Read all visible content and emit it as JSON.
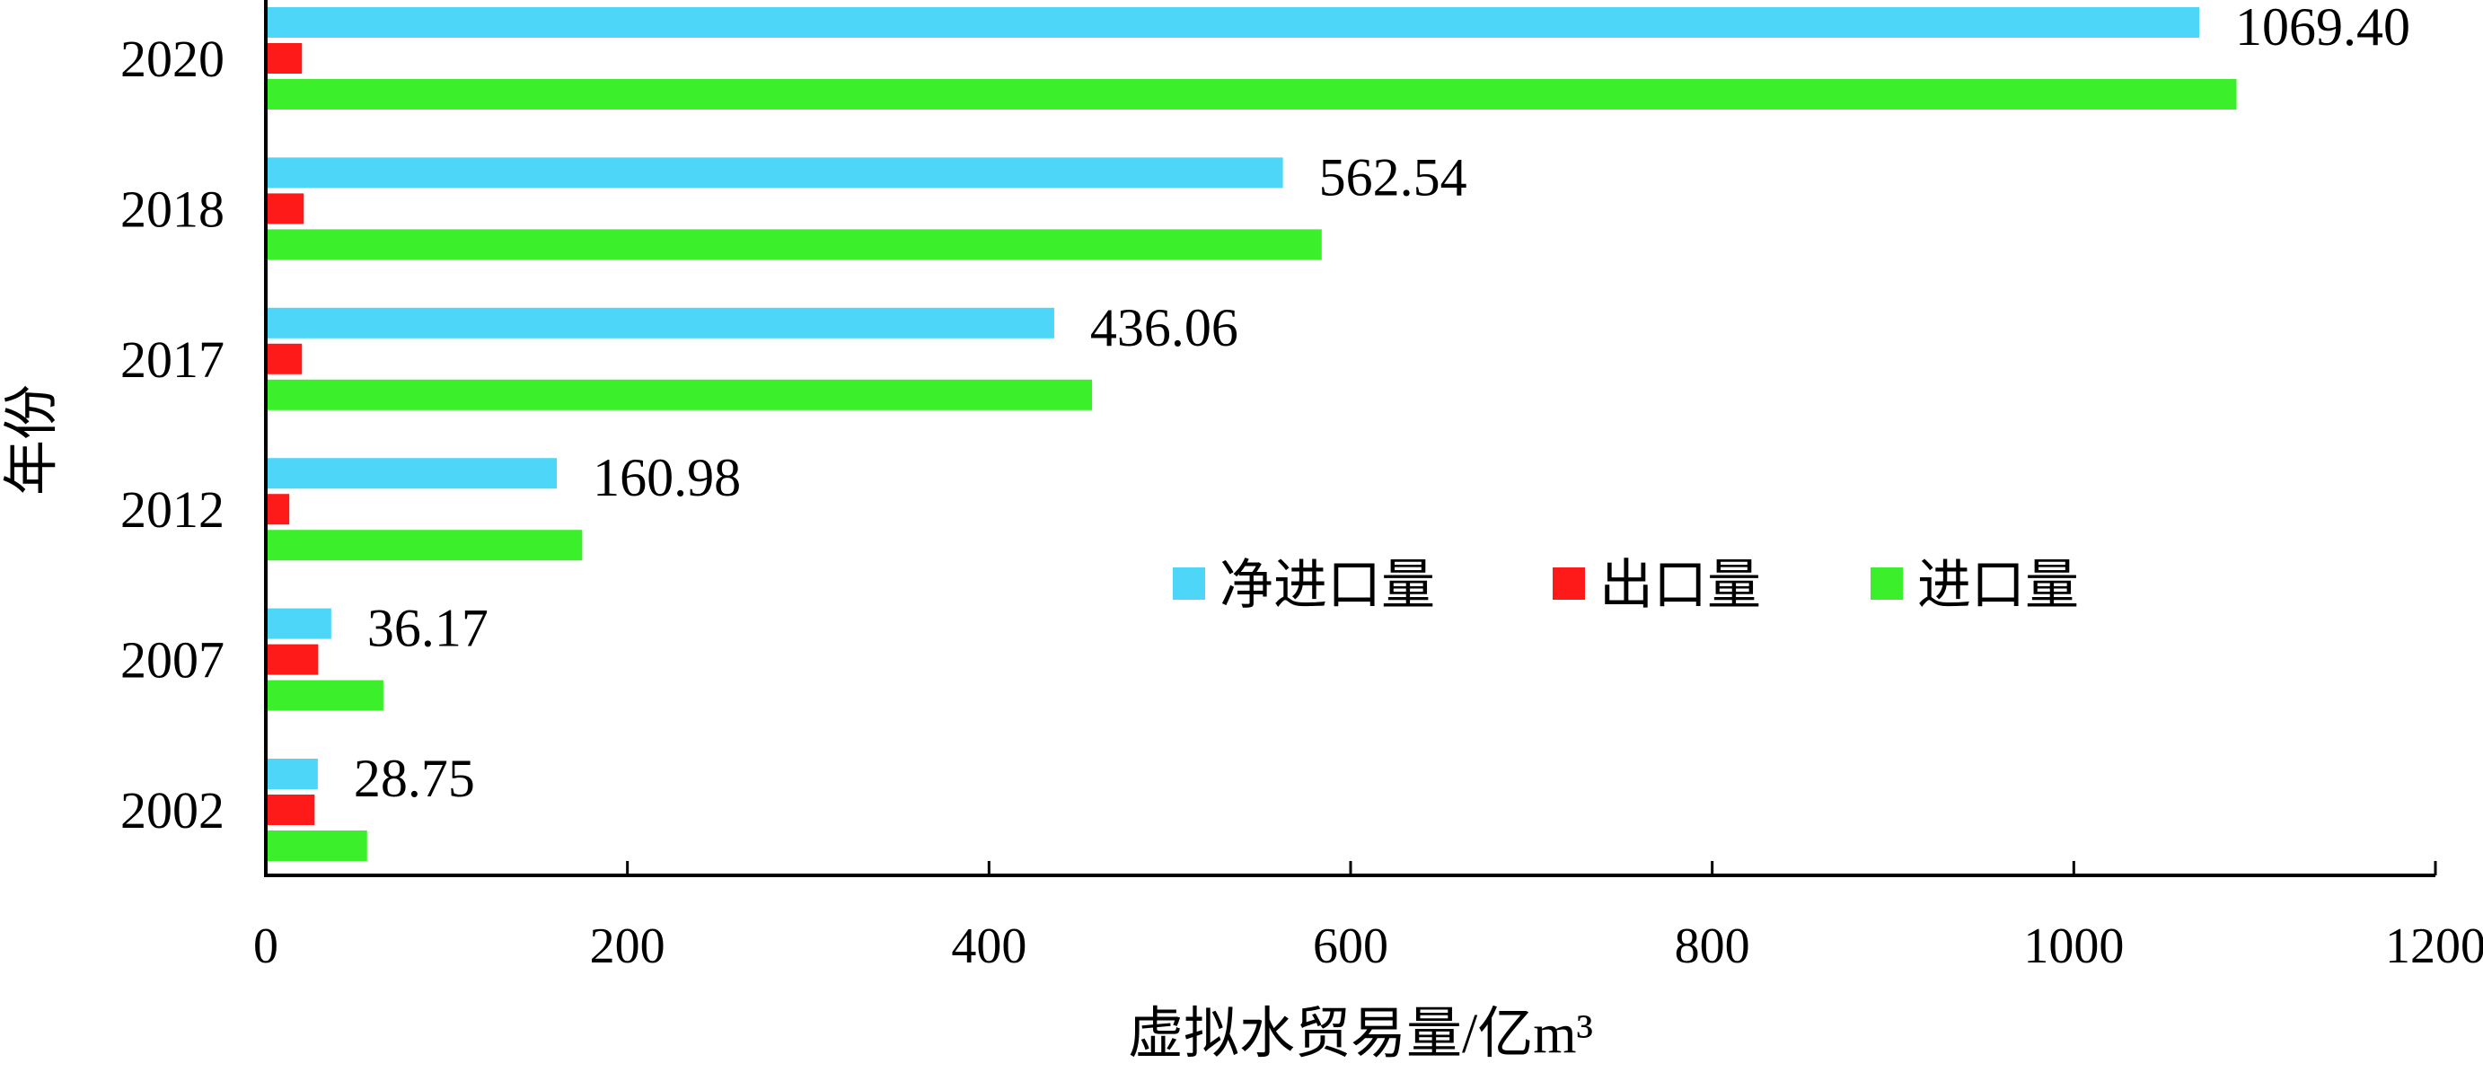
{
  "chart_data": {
    "type": "bar",
    "orientation": "horizontal",
    "categories": [
      "2020",
      "2018",
      "2017",
      "2012",
      "2007",
      "2002"
    ],
    "series": [
      {
        "name": "净进口量",
        "color": "#4dd6f7",
        "values": [
          1069.4,
          562.54,
          436.06,
          160.98,
          36.17,
          28.75
        ]
      },
      {
        "name": "出口量",
        "color": "#ff1a1a",
        "values": [
          20,
          21,
          20,
          13,
          29,
          27
        ]
      },
      {
        "name": "进口量",
        "color": "#3bef2a",
        "values": [
          1090,
          584,
          457,
          175,
          65,
          56
        ]
      }
    ],
    "data_labels": [
      "1069.40",
      "562.54",
      "436.06",
      "160.98",
      "36.17",
      "28.75"
    ],
    "xlabel": "虚拟水贸易量/亿m³",
    "ylabel": "年份",
    "xlim": [
      0,
      1200
    ],
    "xticks": [
      0,
      200,
      400,
      600,
      800,
      1000,
      1200
    ],
    "legend_position": "center-right",
    "grid": false
  }
}
